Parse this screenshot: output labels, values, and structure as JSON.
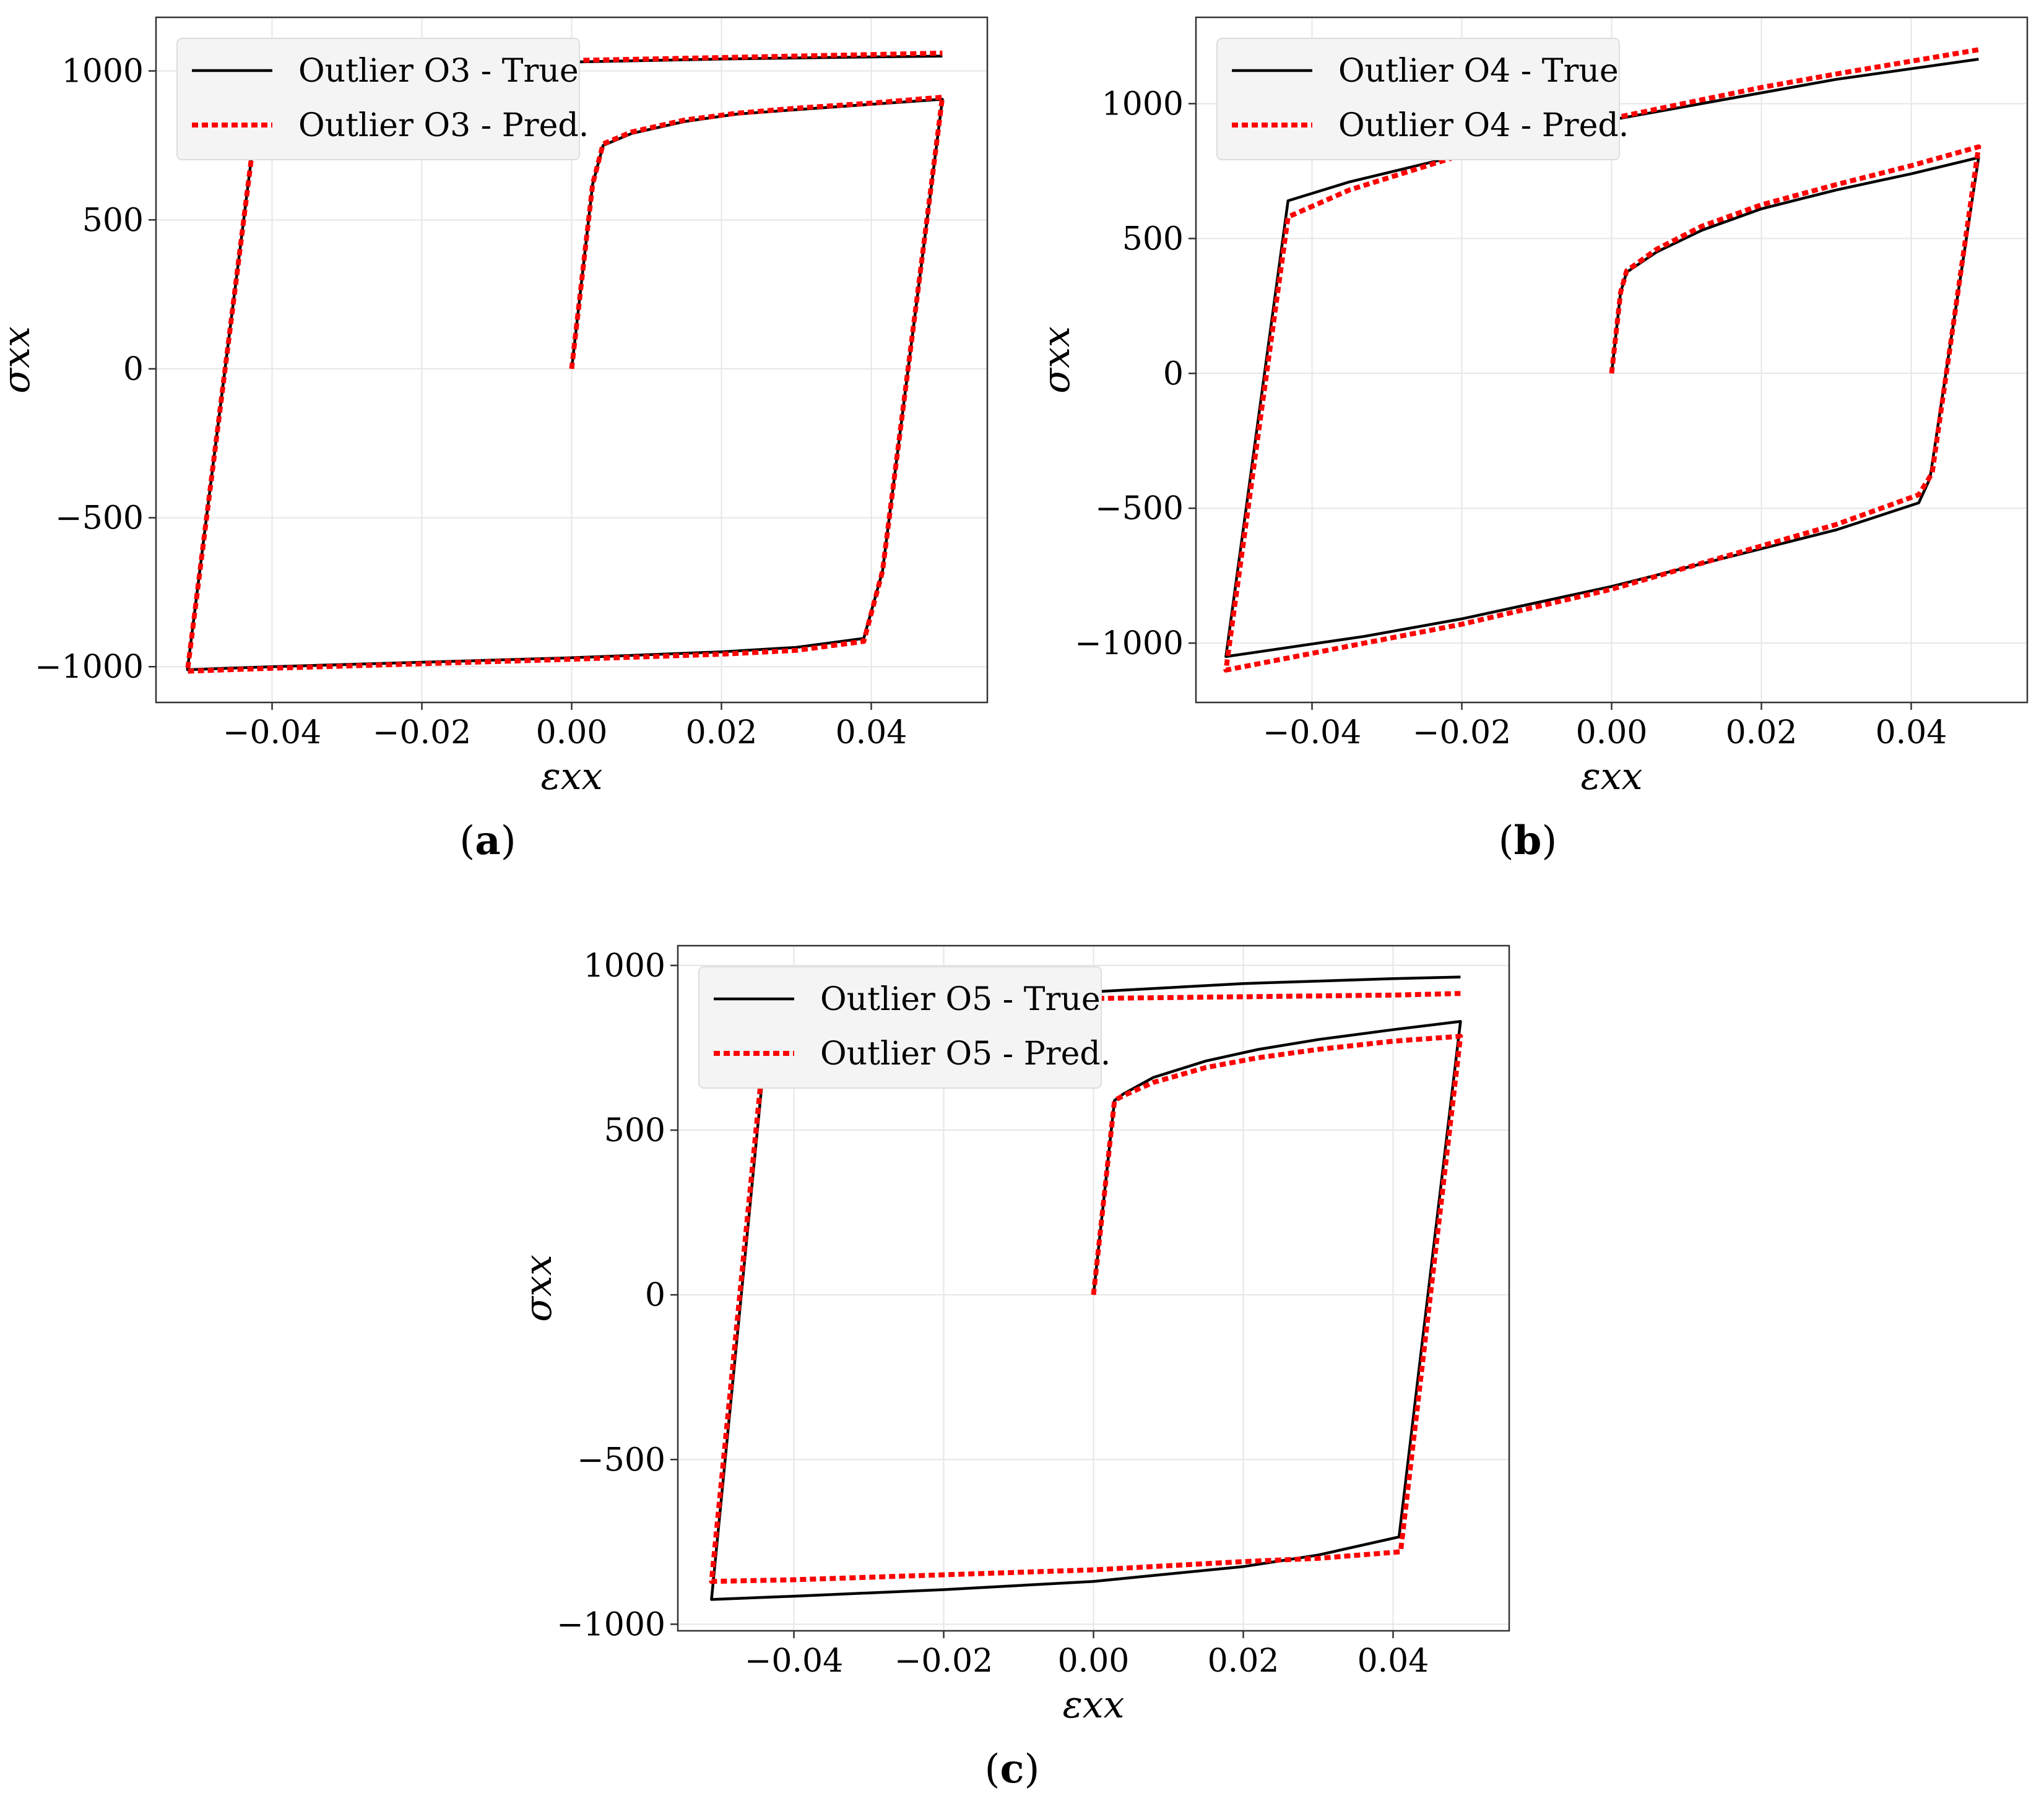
{
  "chart_data": [
    {
      "type": "line",
      "panel_label": "a",
      "xlabel": "εxx",
      "ylabel": "σxx",
      "xlim": [
        -0.0555,
        0.0555
      ],
      "ylim": [
        -1120,
        1180
      ],
      "xticks": [
        -0.04,
        -0.02,
        0.0,
        0.02,
        0.04
      ],
      "xtick_labels": [
        "−0.04",
        "−0.02",
        "0.00",
        "0.02",
        "0.04"
      ],
      "yticks": [
        -1000,
        -500,
        0,
        500,
        1000
      ],
      "ytick_labels": [
        "−1000",
        "−500",
        "0",
        "500",
        "1000"
      ],
      "grid": true,
      "legend_position": "top-left",
      "series": [
        {
          "name": "Outlier O3 - True",
          "color": "#000000",
          "style": "solid",
          "x": [
            0.0,
            0.0028,
            0.0042,
            0.008,
            0.015,
            0.022,
            0.03,
            0.04,
            0.0495,
            0.0415,
            0.039,
            0.03,
            0.02,
            0.0,
            -0.02,
            -0.04,
            -0.0513,
            -0.0428,
            -0.041,
            -0.03,
            -0.02,
            0.0,
            0.02,
            0.04,
            0.0495
          ],
          "y": [
            0,
            620,
            750,
            790,
            830,
            855,
            870,
            888,
            905,
            -680,
            -905,
            -935,
            -950,
            -970,
            -985,
            -1000,
            -1010,
            700,
            995,
            1010,
            1020,
            1030,
            1040,
            1047,
            1050
          ]
        },
        {
          "name": "Outlier O3 - Pred.",
          "color": "#ff0000",
          "style": "dotted",
          "x": [
            0.0,
            0.0028,
            0.0042,
            0.008,
            0.015,
            0.022,
            0.03,
            0.04,
            0.0495,
            0.0415,
            0.039,
            0.03,
            0.02,
            0.0,
            -0.02,
            -0.04,
            -0.0513,
            -0.0428,
            -0.041,
            -0.03,
            -0.02,
            0.0,
            0.02,
            0.04,
            0.0495
          ],
          "y": [
            0,
            620,
            755,
            795,
            835,
            858,
            875,
            892,
            912,
            -680,
            -915,
            -945,
            -958,
            -975,
            -990,
            -1005,
            -1015,
            700,
            1000,
            1010,
            1020,
            1035,
            1045,
            1055,
            1060
          ]
        }
      ]
    },
    {
      "type": "line",
      "panel_label": "b",
      "xlabel": "εxx",
      "ylabel": "σxx",
      "xlim": [
        -0.0555,
        0.0555
      ],
      "ylim": [
        -1220,
        1320
      ],
      "xticks": [
        -0.04,
        -0.02,
        0.0,
        0.02,
        0.04
      ],
      "xtick_labels": [
        "−0.04",
        "−0.02",
        "0.00",
        "0.02",
        "0.04"
      ],
      "yticks": [
        -1000,
        -500,
        0,
        500,
        1000
      ],
      "ytick_labels": [
        "−1000",
        "−500",
        "0",
        "500",
        "1000"
      ],
      "grid": true,
      "legend_position": "top-left",
      "series": [
        {
          "name": "Outlier O4 - True",
          "color": "#000000",
          "style": "solid",
          "x": [
            0.0,
            0.0012,
            0.002,
            0.006,
            0.012,
            0.02,
            0.03,
            0.04,
            0.049,
            0.0425,
            0.041,
            0.03,
            0.02,
            0.0,
            -0.02,
            -0.033,
            -0.0515,
            -0.0432,
            -0.035,
            -0.02,
            0.0,
            0.02,
            0.03,
            0.049
          ],
          "y": [
            0,
            300,
            375,
            450,
            530,
            610,
            680,
            740,
            800,
            -390,
            -480,
            -580,
            -650,
            -790,
            -910,
            -975,
            -1050,
            640,
            710,
            810,
            940,
            1040,
            1090,
            1165
          ]
        },
        {
          "name": "Outlier O4 - Pred.",
          "color": "#ff0000",
          "style": "dotted",
          "x": [
            0.0,
            0.0012,
            0.002,
            0.006,
            0.012,
            0.02,
            0.03,
            0.04,
            0.049,
            0.0428,
            0.041,
            0.03,
            0.02,
            0.0,
            -0.02,
            -0.033,
            -0.0515,
            -0.0432,
            -0.035,
            -0.02,
            0.0,
            0.02,
            0.03,
            0.049
          ],
          "y": [
            0,
            300,
            380,
            460,
            545,
            625,
            700,
            770,
            840,
            -370,
            -450,
            -560,
            -640,
            -800,
            -930,
            -1000,
            -1100,
            580,
            680,
            810,
            945,
            1060,
            1110,
            1200
          ]
        }
      ]
    },
    {
      "type": "line",
      "panel_label": "c",
      "xlabel": "εxx",
      "ylabel": "σxx",
      "xlim": [
        -0.0555,
        0.0555
      ],
      "ylim": [
        -1020,
        1060
      ],
      "xticks": [
        -0.04,
        -0.02,
        0.0,
        0.02,
        0.04
      ],
      "xtick_labels": [
        "−0.04",
        "−0.02",
        "0.00",
        "0.02",
        "0.04"
      ],
      "yticks": [
        -1000,
        -500,
        0,
        500,
        1000
      ],
      "ytick_labels": [
        "−1000",
        "−500",
        "0",
        "500",
        "1000"
      ],
      "grid": true,
      "legend_position": "top-left",
      "series": [
        {
          "name": "Outlier O5 - True",
          "color": "#000000",
          "style": "solid",
          "x": [
            0.0,
            0.0028,
            0.004,
            0.008,
            0.015,
            0.022,
            0.03,
            0.04,
            0.049,
            0.0408,
            0.03,
            0.02,
            0.0,
            -0.02,
            -0.04,
            -0.051,
            -0.0435,
            -0.042,
            -0.03,
            -0.02,
            0.0,
            0.02,
            0.04,
            0.049
          ],
          "y": [
            0,
            590,
            610,
            660,
            710,
            745,
            775,
            805,
            830,
            -735,
            -790,
            -825,
            -870,
            -895,
            -915,
            -925,
            820,
            830,
            870,
            890,
            920,
            945,
            960,
            965
          ]
        },
        {
          "name": "Outlier O5 - Pred.",
          "color": "#ff0000",
          "style": "dotted",
          "x": [
            0.0,
            0.0028,
            0.004,
            0.008,
            0.015,
            0.022,
            0.03,
            0.04,
            0.049,
            0.041,
            0.03,
            0.02,
            0.0,
            -0.02,
            -0.04,
            -0.051,
            -0.0435,
            -0.043,
            -0.03,
            -0.02,
            0.0,
            0.02,
            0.04,
            0.049
          ],
          "y": [
            0,
            590,
            605,
            645,
            690,
            720,
            745,
            770,
            785,
            -780,
            -800,
            -810,
            -835,
            -850,
            -865,
            -870,
            860,
            875,
            885,
            890,
            900,
            905,
            910,
            915
          ]
        }
      ]
    }
  ]
}
